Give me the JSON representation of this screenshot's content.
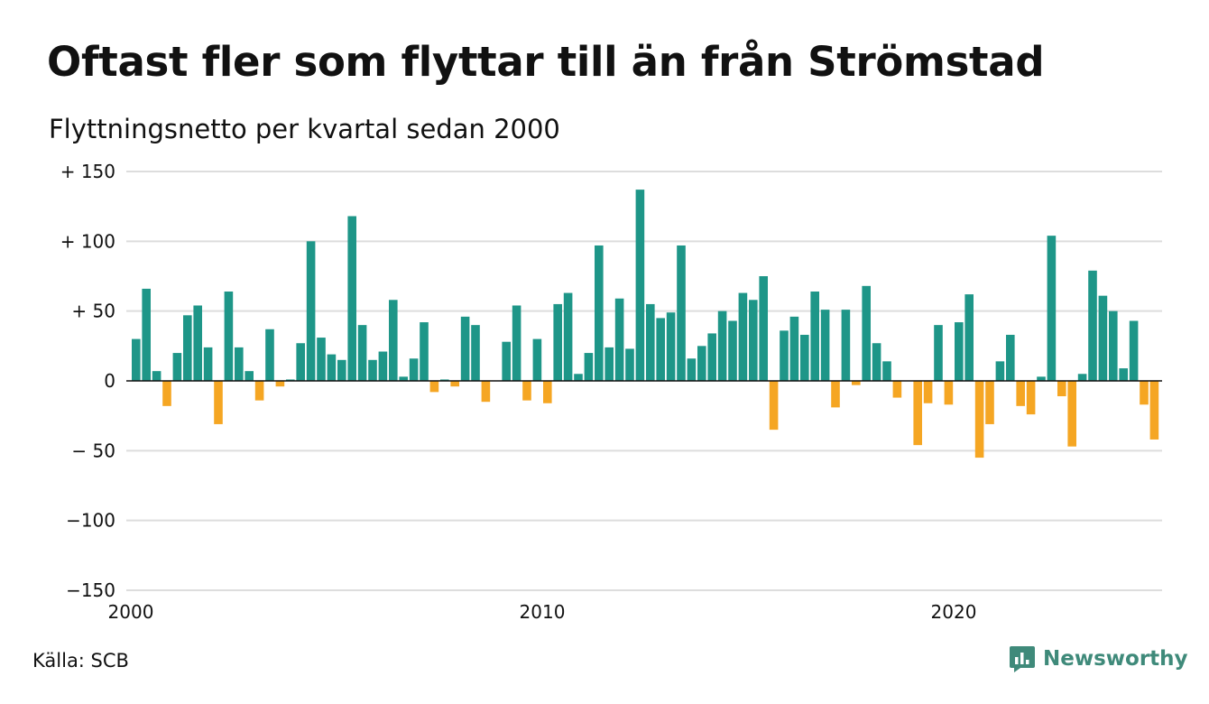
{
  "header": {
    "title": "Oftast fler som flyttar till än från Strömstad",
    "subtitle": "Flyttningsnetto per kvartal sedan 2000"
  },
  "footer": {
    "source": "Källa: SCB",
    "brand": "Newsworthy"
  },
  "colors": {
    "positive": "#1e9688",
    "negative": "#f5a623",
    "grid": "#dddddd",
    "baseline": "#111111",
    "brand": "#3f8a7a"
  },
  "icons": {
    "brand_logo": "chart-speech-bubble-icon"
  },
  "chart_data": {
    "type": "bar",
    "title": "Oftast fler som flyttar till än från Strömstad",
    "subtitle": "Flyttningsnetto per kvartal sedan 2000",
    "xlabel": "",
    "ylabel": "",
    "ylim": [
      -150,
      150
    ],
    "yticks": [
      150,
      100,
      50,
      0,
      -50,
      -100,
      -150
    ],
    "ytick_labels": [
      "+ 150",
      "+ 100",
      "+  50",
      "0",
      "− 50",
      "−100",
      "−150"
    ],
    "xticks": [
      2000,
      2010,
      2020
    ],
    "xtick_labels": [
      "2000",
      "2010",
      "2020"
    ],
    "x_start_year": 2000,
    "periods_per_year": 4,
    "grid": true,
    "legend": "none",
    "values": [
      30,
      66,
      7,
      -18,
      20,
      47,
      54,
      24,
      -31,
      64,
      24,
      7,
      -14,
      37,
      -4,
      1,
      27,
      100,
      31,
      19,
      15,
      118,
      40,
      15,
      21,
      58,
      3,
      16,
      42,
      -8,
      1,
      -4,
      46,
      40,
      -15,
      0,
      28,
      54,
      -14,
      30,
      -16,
      55,
      63,
      5,
      20,
      97,
      24,
      59,
      23,
      137,
      55,
      45,
      49,
      97,
      16,
      25,
      34,
      50,
      43,
      63,
      58,
      75,
      -35,
      36,
      46,
      33,
      64,
      51,
      -19,
      51,
      -3,
      68,
      27,
      14,
      -12,
      0,
      -46,
      -16,
      40,
      -17,
      42,
      62,
      -55,
      -31,
      14,
      33,
      -18,
      -24,
      3,
      104,
      -11,
      -47,
      5,
      79,
      61,
      50,
      9,
      43,
      -17,
      -42
    ]
  }
}
